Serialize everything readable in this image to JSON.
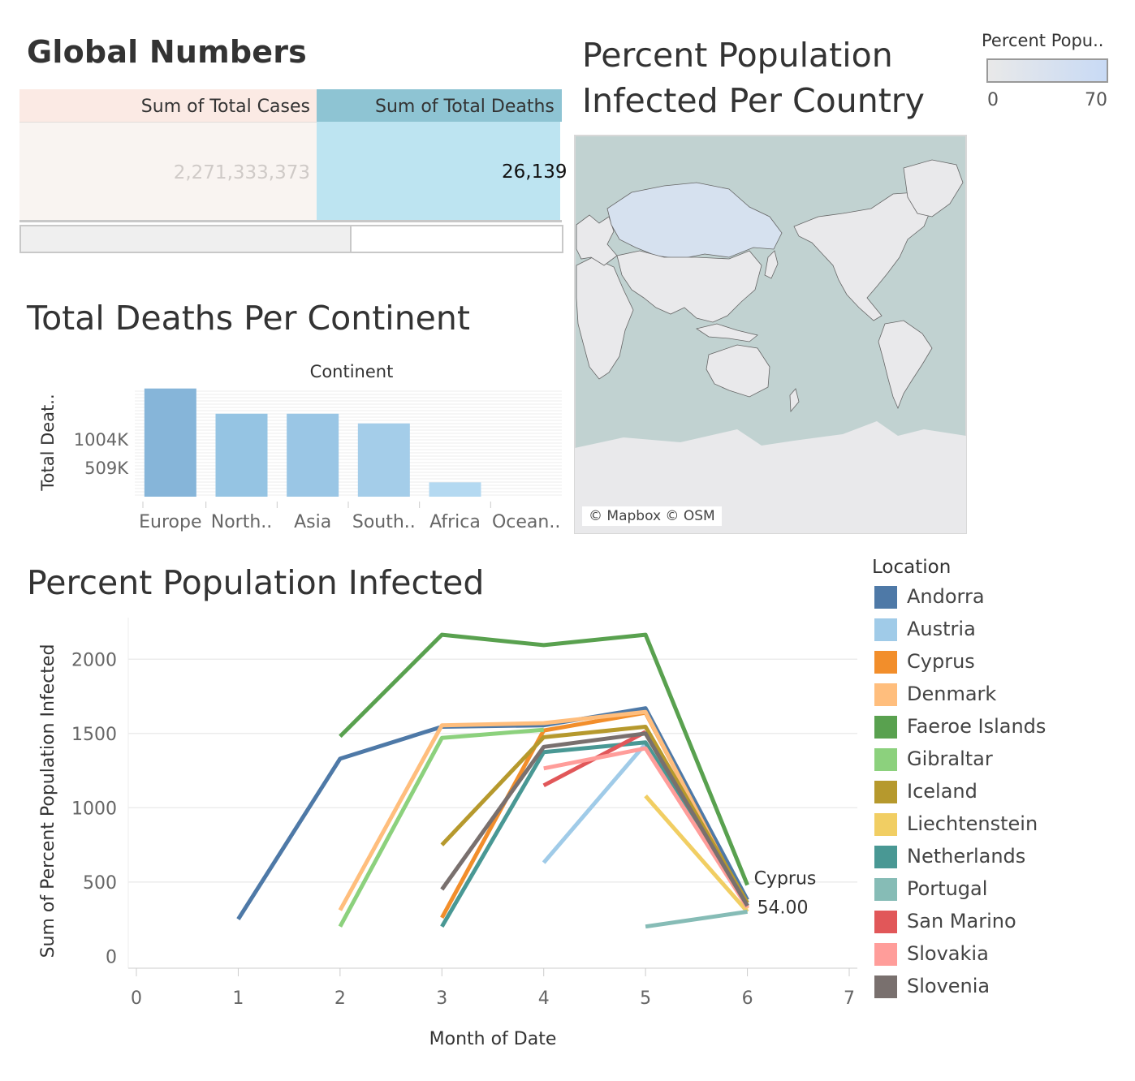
{
  "global_numbers": {
    "title": "Global Numbers",
    "headers": [
      "Sum of Total Cases",
      "Sum of Total Deaths"
    ],
    "values": [
      "2,271,333,373",
      "26,139"
    ]
  },
  "map": {
    "title": "Percent Population Infected Per Country",
    "legend_title": "Percent Popu..",
    "legend_min": "0",
    "legend_max": "70",
    "credit": "© Mapbox © OSM",
    "colors": {
      "ocean": "#c1d2d1",
      "land": "#e9e9eb",
      "highlight": "#d6e1ef",
      "border": "#666666"
    }
  },
  "chart_data": [
    {
      "type": "bar",
      "title": "Total Deaths Per Continent",
      "header": "Continent",
      "ylabel": "Total Deat..",
      "categories": [
        "Europe",
        "North..",
        "Asia",
        "South..",
        "Africa",
        "Ocean.."
      ],
      "values": [
        1890000,
        1450000,
        1450000,
        1280000,
        250000,
        0
      ],
      "colors": [
        "#86b5d9",
        "#95c4e3",
        "#9ac6e5",
        "#a4cde9",
        "#b4d9f1",
        "#c9e4f5"
      ],
      "yticks": [
        {
          "value": 509000,
          "label": "509K"
        },
        {
          "value": 1004000,
          "label": "1004K"
        }
      ],
      "ylim": [
        0,
        1900000
      ]
    },
    {
      "type": "line",
      "title": "Percent Population Infected",
      "xlabel": "Month of Date",
      "ylabel": "Sum of Percent Population Infected",
      "xlim": [
        0,
        7
      ],
      "ylim": [
        -80,
        2280
      ],
      "xticks": [
        0,
        1,
        2,
        3,
        4,
        5,
        6,
        7
      ],
      "yticks": [
        0,
        500,
        1000,
        1500,
        2000
      ],
      "legend_title": "Location",
      "annotation": {
        "location": "Cyprus",
        "value": "54.00"
      },
      "series": [
        {
          "name": "Andorra",
          "color": "#4e79a7",
          "points": [
            [
              1,
              250
            ],
            [
              2,
              1330
            ],
            [
              3,
              1545
            ],
            [
              4,
              1555
            ],
            [
              5,
              1670
            ],
            [
              6,
              380
            ]
          ]
        },
        {
          "name": "Austria",
          "color": "#a0cbe8",
          "points": [
            [
              4,
              630
            ],
            [
              5,
              1430
            ],
            [
              6,
              340
            ]
          ]
        },
        {
          "name": "Cyprus",
          "color": "#f28e2b",
          "points": [
            [
              3,
              260
            ],
            [
              4,
              1520
            ],
            [
              5,
              1640
            ],
            [
              6,
              330
            ]
          ]
        },
        {
          "name": "Denmark",
          "color": "#ffbe7d",
          "points": [
            [
              2,
              310
            ],
            [
              3,
              1555
            ],
            [
              4,
              1570
            ],
            [
              5,
              1645
            ],
            [
              6,
              320
            ]
          ]
        },
        {
          "name": "Faeroe Islands",
          "color": "#59a14f",
          "points": [
            [
              2,
              1480
            ],
            [
              3,
              2165
            ],
            [
              4,
              2095
            ],
            [
              5,
              2165
            ],
            [
              6,
              480
            ]
          ]
        },
        {
          "name": "Gibraltar",
          "color": "#8cd17d",
          "points": [
            [
              2,
              200
            ],
            [
              3,
              1470
            ],
            [
              4,
              1525
            ]
          ]
        },
        {
          "name": "Iceland",
          "color": "#b6992d",
          "points": [
            [
              3,
              750
            ],
            [
              4,
              1475
            ],
            [
              5,
              1545
            ],
            [
              6,
              360
            ]
          ]
        },
        {
          "name": "Liechtenstein",
          "color": "#f1ce63",
          "points": [
            [
              5,
              1080
            ],
            [
              6,
              300
            ]
          ]
        },
        {
          "name": "Netherlands",
          "color": "#499894",
          "points": [
            [
              3,
              200
            ],
            [
              4,
              1375
            ],
            [
              5,
              1440
            ],
            [
              6,
              340
            ]
          ]
        },
        {
          "name": "Portugal",
          "color": "#86bcb6",
          "points": [
            [
              5,
              200
            ],
            [
              6,
              300
            ]
          ]
        },
        {
          "name": "San Marino",
          "color": "#e15759",
          "points": [
            [
              4,
              1150
            ],
            [
              5,
              1510
            ]
          ]
        },
        {
          "name": "Slovakia",
          "color": "#ff9d9a",
          "points": [
            [
              4,
              1265
            ],
            [
              5,
              1400
            ],
            [
              6,
              330
            ]
          ]
        },
        {
          "name": "Slovenia",
          "color": "#79706e",
          "points": [
            [
              3,
              450
            ],
            [
              4,
              1410
            ],
            [
              5,
              1500
            ],
            [
              6,
              340
            ]
          ]
        }
      ]
    }
  ]
}
